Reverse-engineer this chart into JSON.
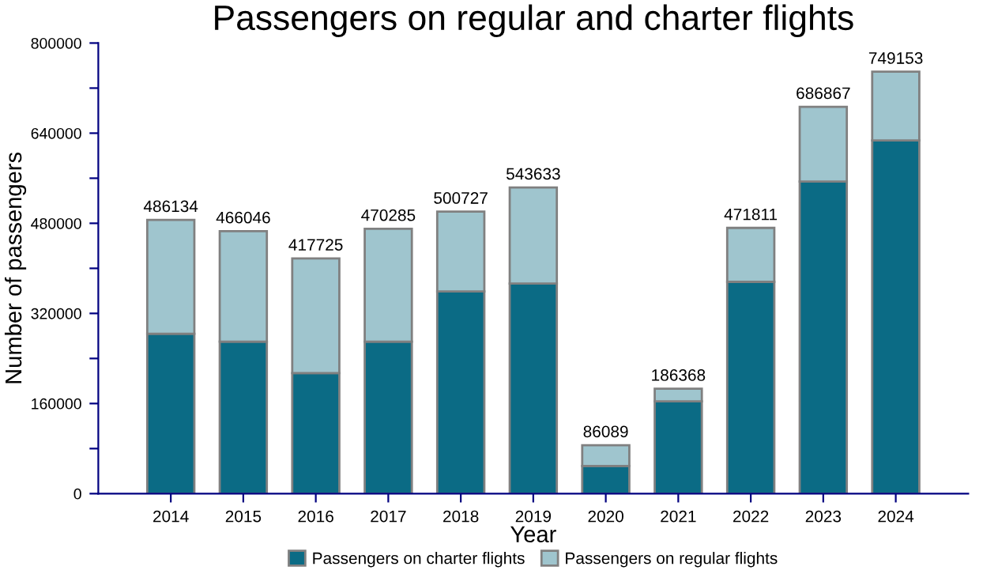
{
  "chart_data": {
    "type": "bar",
    "stacked": true,
    "title": "Passengers on regular and charter flights",
    "xlabel": "Year",
    "ylabel": "Number of passengers",
    "categories": [
      "2014",
      "2015",
      "2016",
      "2017",
      "2018",
      "2019",
      "2020",
      "2021",
      "2022",
      "2023",
      "2024"
    ],
    "series": [
      {
        "name": "Passengers on charter flights",
        "color": "#0b6b85",
        "values": [
          284000,
          270000,
          214000,
          270000,
          359000,
          373000,
          49000,
          164000,
          376000,
          554000,
          627000
        ]
      },
      {
        "name": "Passengers on regular flights",
        "color": "#9fc5ce",
        "values": [
          202134,
          196046,
          203725,
          200285,
          141727,
          170633,
          37089,
          22368,
          95811,
          132867,
          122153
        ]
      }
    ],
    "totals": [
      "486134",
      "466046",
      "417725",
      "470285",
      "500727",
      "543633",
      "86089",
      "186368",
      "471811",
      "686867",
      "749153"
    ],
    "ylim": [
      0,
      800000
    ],
    "yticks": [
      0,
      {
        "value": 80000,
        "label": null
      },
      160000,
      {
        "value": 240000,
        "label": null
      },
      320000,
      {
        "value": 400000,
        "label": null
      },
      480000,
      {
        "value": 560000,
        "label": null
      },
      640000,
      {
        "value": 720000,
        "label": null
      },
      800000
    ],
    "grid": false,
    "legend": "bottom"
  }
}
